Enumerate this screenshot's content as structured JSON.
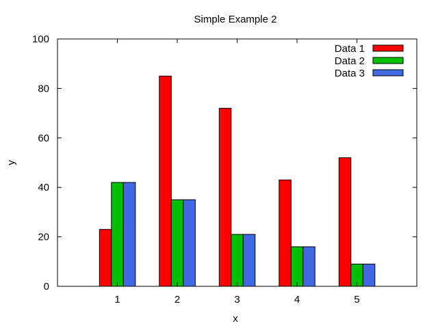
{
  "chart_data": {
    "type": "bar",
    "title": "Simple Example 2",
    "xlabel": "x",
    "ylabel": "y",
    "categories": [
      "1",
      "2",
      "3",
      "4",
      "5"
    ],
    "series": [
      {
        "name": "Data 1",
        "values": [
          23,
          85,
          72,
          43,
          52
        ],
        "color": "#ff0000"
      },
      {
        "name": "Data 2",
        "values": [
          42,
          35,
          21,
          16,
          9
        ],
        "color": "#00c000"
      },
      {
        "name": "Data 3",
        "values": [
          42,
          35,
          21,
          16,
          9
        ],
        "color": "#4169e1"
      }
    ],
    "xlim": [
      0,
      6
    ],
    "ylim": [
      0,
      100
    ],
    "yticks": [
      0,
      20,
      40,
      60,
      80,
      100
    ],
    "grid": false,
    "legend_position": "top-right"
  }
}
